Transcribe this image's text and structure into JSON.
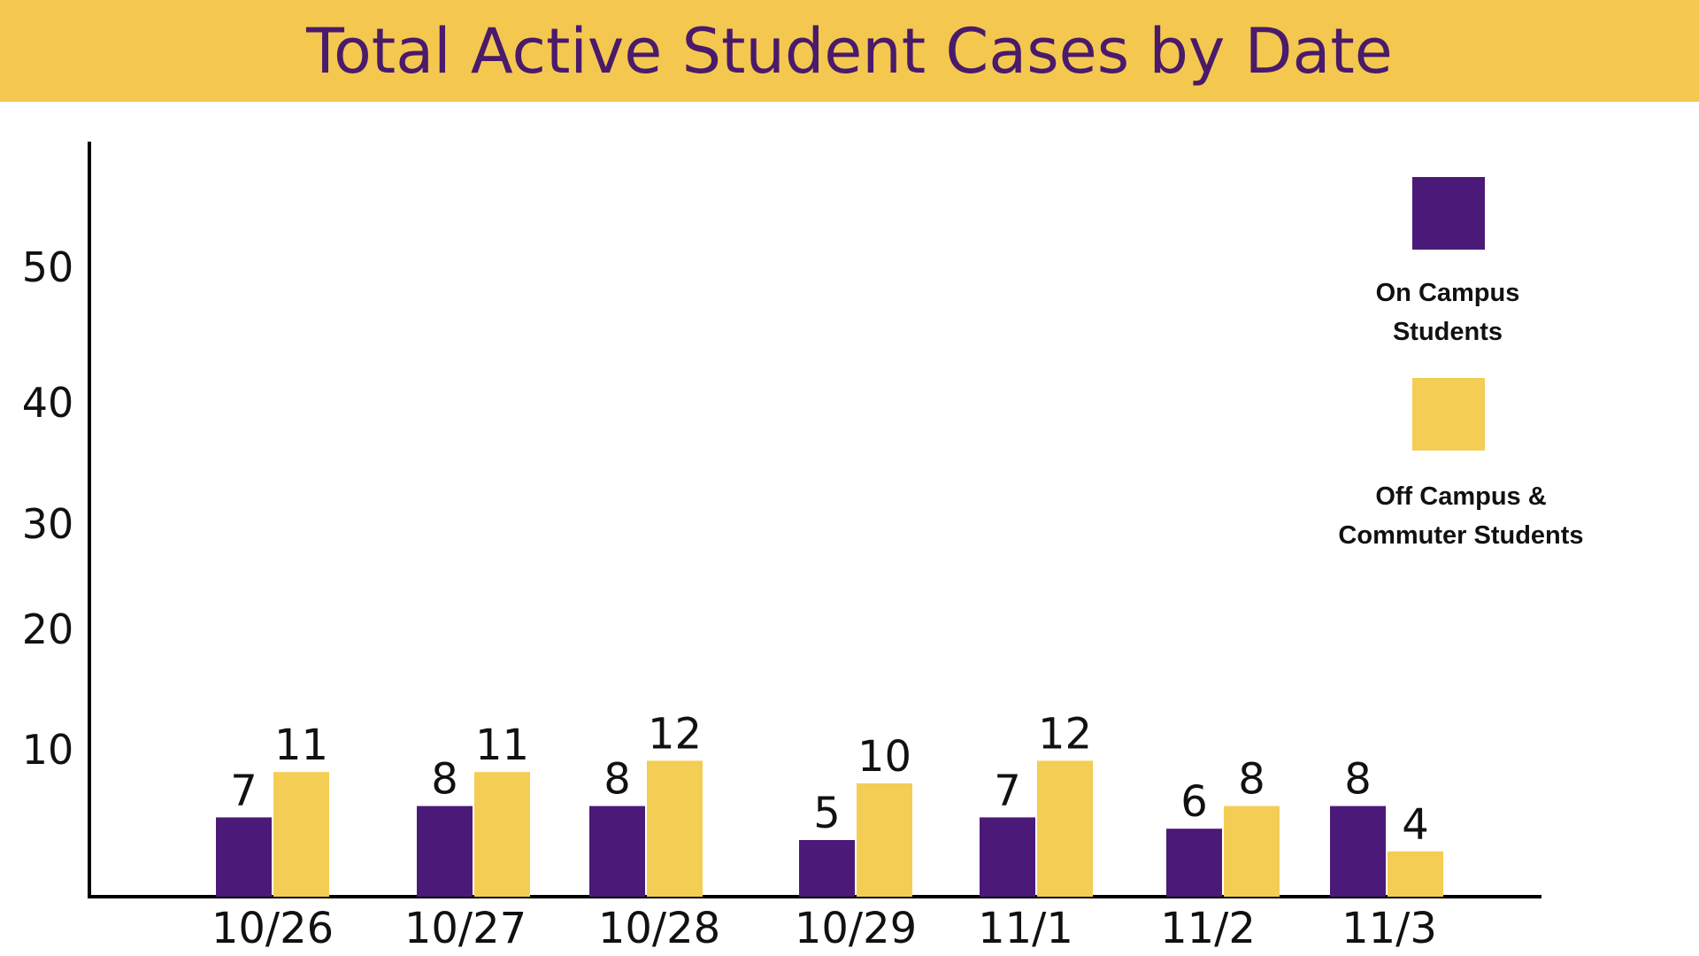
{
  "chart_data": {
    "type": "bar",
    "title": "Total Active Student Cases by Date",
    "xlabel": "",
    "ylabel": "",
    "categories": [
      "10/26",
      "10/27",
      "10/28",
      "10/29",
      "11/1",
      "11/2",
      "11/3"
    ],
    "series": [
      {
        "name": "On Campus Students",
        "legend_lines": [
          "On Campus",
          "Students"
        ],
        "color": "#4b1a78",
        "values": [
          7,
          8,
          8,
          5,
          7,
          6,
          8
        ]
      },
      {
        "name": "Off Campus & Commuter Students",
        "legend_lines": [
          "Off Campus &",
          "Commuter Students"
        ],
        "color": "#f4cd54",
        "values": [
          11,
          11,
          12,
          10,
          12,
          8,
          4
        ]
      }
    ],
    "yticks": [
      10,
      20,
      30,
      40,
      50
    ],
    "ylim": [
      0,
      60
    ],
    "grid": false,
    "legend_position": "top-right",
    "colors": {
      "banner": "#f4c84f",
      "title_text": "#4a1a6b",
      "axis": "#000000"
    }
  }
}
